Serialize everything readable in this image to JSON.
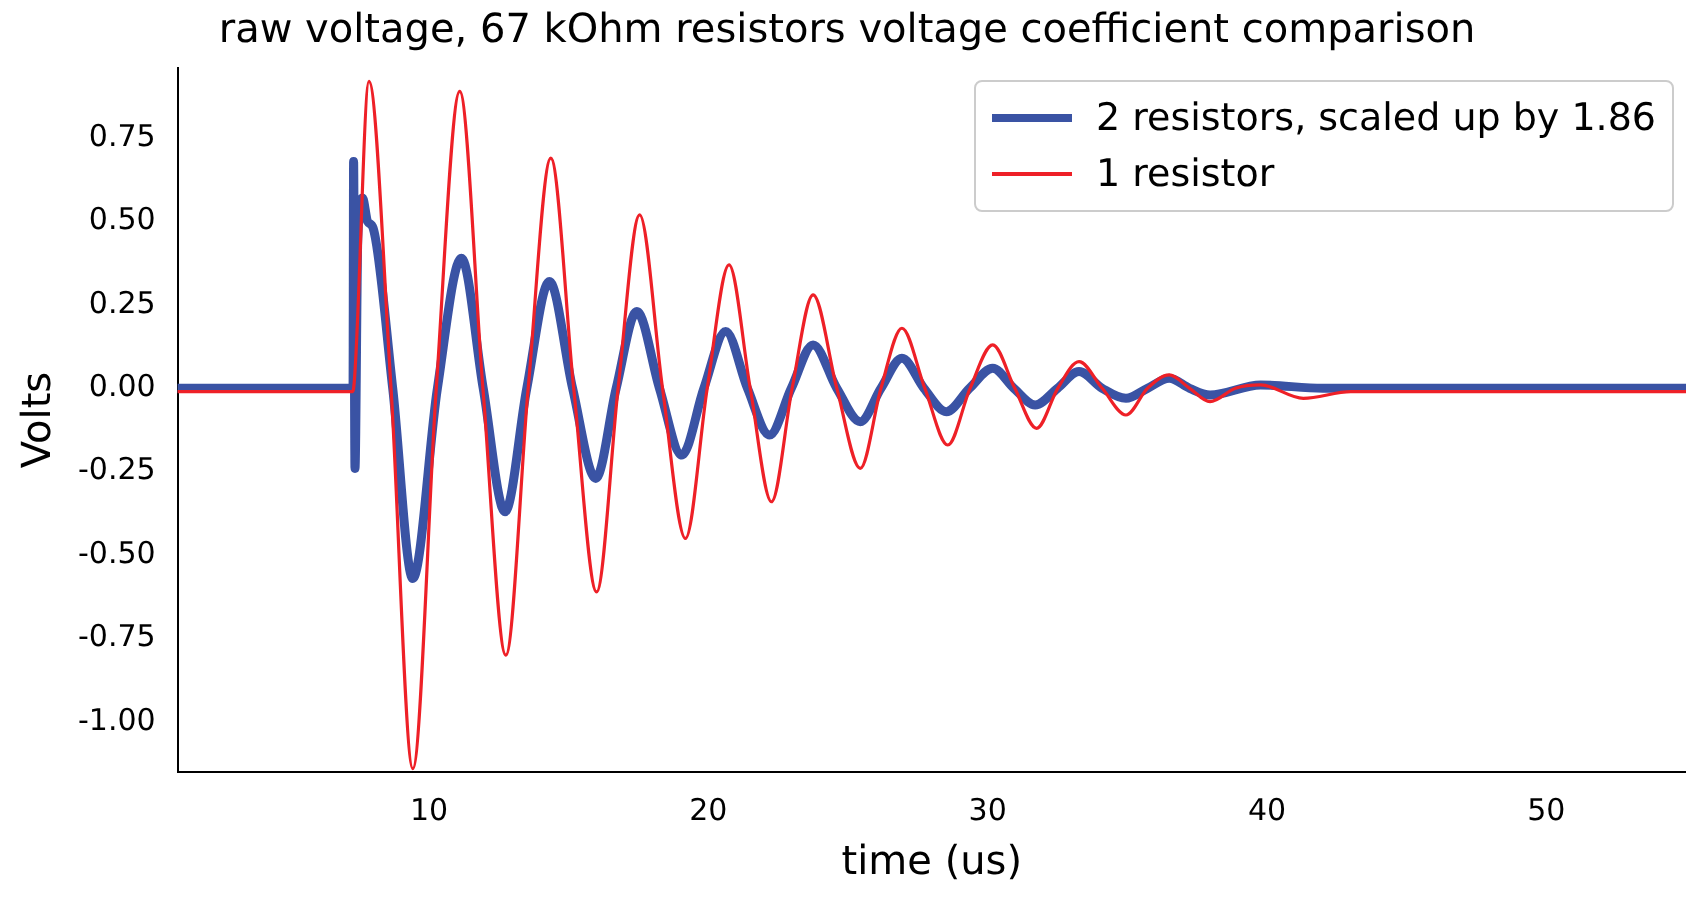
{
  "chart_data": {
    "type": "line",
    "title": "raw voltage, 67 kOhm resistors voltage coefficient comparison",
    "xlabel": "time (us)",
    "ylabel": "Volts",
    "xlim": [
      1,
      55
    ],
    "xticks": [
      10,
      20,
      30,
      40,
      50
    ],
    "ylim": [
      -1.15,
      0.96
    ],
    "yticks": [
      {
        "value": -1,
        "label": "-1.00"
      },
      -0.75,
      {
        "value": -0.5,
        "label": "-0.50"
      },
      -0.25,
      {
        "value": 0,
        "label": "0.00"
      },
      0.25,
      {
        "value": 0.5,
        "label": "0.50"
      },
      0.75
    ],
    "grid": false,
    "legend": "top right",
    "marker": "none",
    "line_style": "solid",
    "series": [
      {
        "name": "2 resistors, scaled up by 1.86",
        "color": "#3a53a4",
        "x": [
          1,
          7.28,
          7.3,
          7.35,
          7.45,
          7.62,
          7.8,
          8.0,
          8.7,
          9.42,
          10.3,
          11.16,
          11.94,
          12.72,
          13.5,
          14.31,
          15.14,
          15.97,
          16.7,
          17.44,
          18.25,
          19.05,
          19.84,
          20.62,
          21.4,
          22.19,
          22.97,
          23.75,
          24.6,
          25.44,
          26.18,
          26.93,
          27.72,
          28.52,
          29.35,
          30.18,
          30.94,
          31.7,
          32.5,
          33.27,
          34.1,
          34.95,
          35.72,
          36.5,
          37.23,
          37.96,
          39.77,
          42,
          55
        ],
        "values": [
          0,
          0,
          0.68,
          -0.24,
          0.45,
          0.57,
          0.5,
          0.48,
          0,
          -0.57,
          0,
          0.39,
          0,
          -0.37,
          0,
          0.32,
          0,
          -0.27,
          0,
          0.23,
          0,
          -0.2,
          0,
          0.17,
          0,
          -0.14,
          0,
          0.13,
          0,
          -0.1,
          0,
          0.09,
          0,
          -0.07,
          0,
          0.06,
          0,
          -0.05,
          0,
          0.05,
          0,
          -0.03,
          0,
          0.03,
          0,
          -0.02,
          0.01,
          0,
          0
        ]
      },
      {
        "name": "1 resistor",
        "color": "#ee2027",
        "x": [
          1,
          7.25,
          7.3,
          7.85,
          8.64,
          9.42,
          10.26,
          11.1,
          11.93,
          12.75,
          13.55,
          14.36,
          15.18,
          16.0,
          16.77,
          17.54,
          18.36,
          19.18,
          19.96,
          20.74,
          21.5,
          22.26,
          23.0,
          23.75,
          24.6,
          25.44,
          26.18,
          26.93,
          27.75,
          28.57,
          29.37,
          30.18,
          30.97,
          31.75,
          32.51,
          33.27,
          34.1,
          34.95,
          35.72,
          36.5,
          37.23,
          37.96,
          38.87,
          39.77,
          41.3,
          43,
          55
        ],
        "values": [
          -0.01,
          -0.01,
          0,
          0.92,
          0,
          -1.14,
          0,
          0.89,
          0,
          -0.8,
          0,
          0.69,
          0,
          -0.61,
          0,
          0.52,
          0,
          -0.45,
          0,
          0.37,
          0,
          -0.34,
          0,
          0.28,
          0,
          -0.24,
          0,
          0.18,
          0,
          -0.17,
          0,
          0.13,
          0,
          -0.12,
          0,
          0.08,
          0,
          -0.08,
          0,
          0.04,
          0,
          -0.04,
          0,
          0.01,
          -0.03,
          -0.01,
          -0.01
        ]
      }
    ]
  }
}
